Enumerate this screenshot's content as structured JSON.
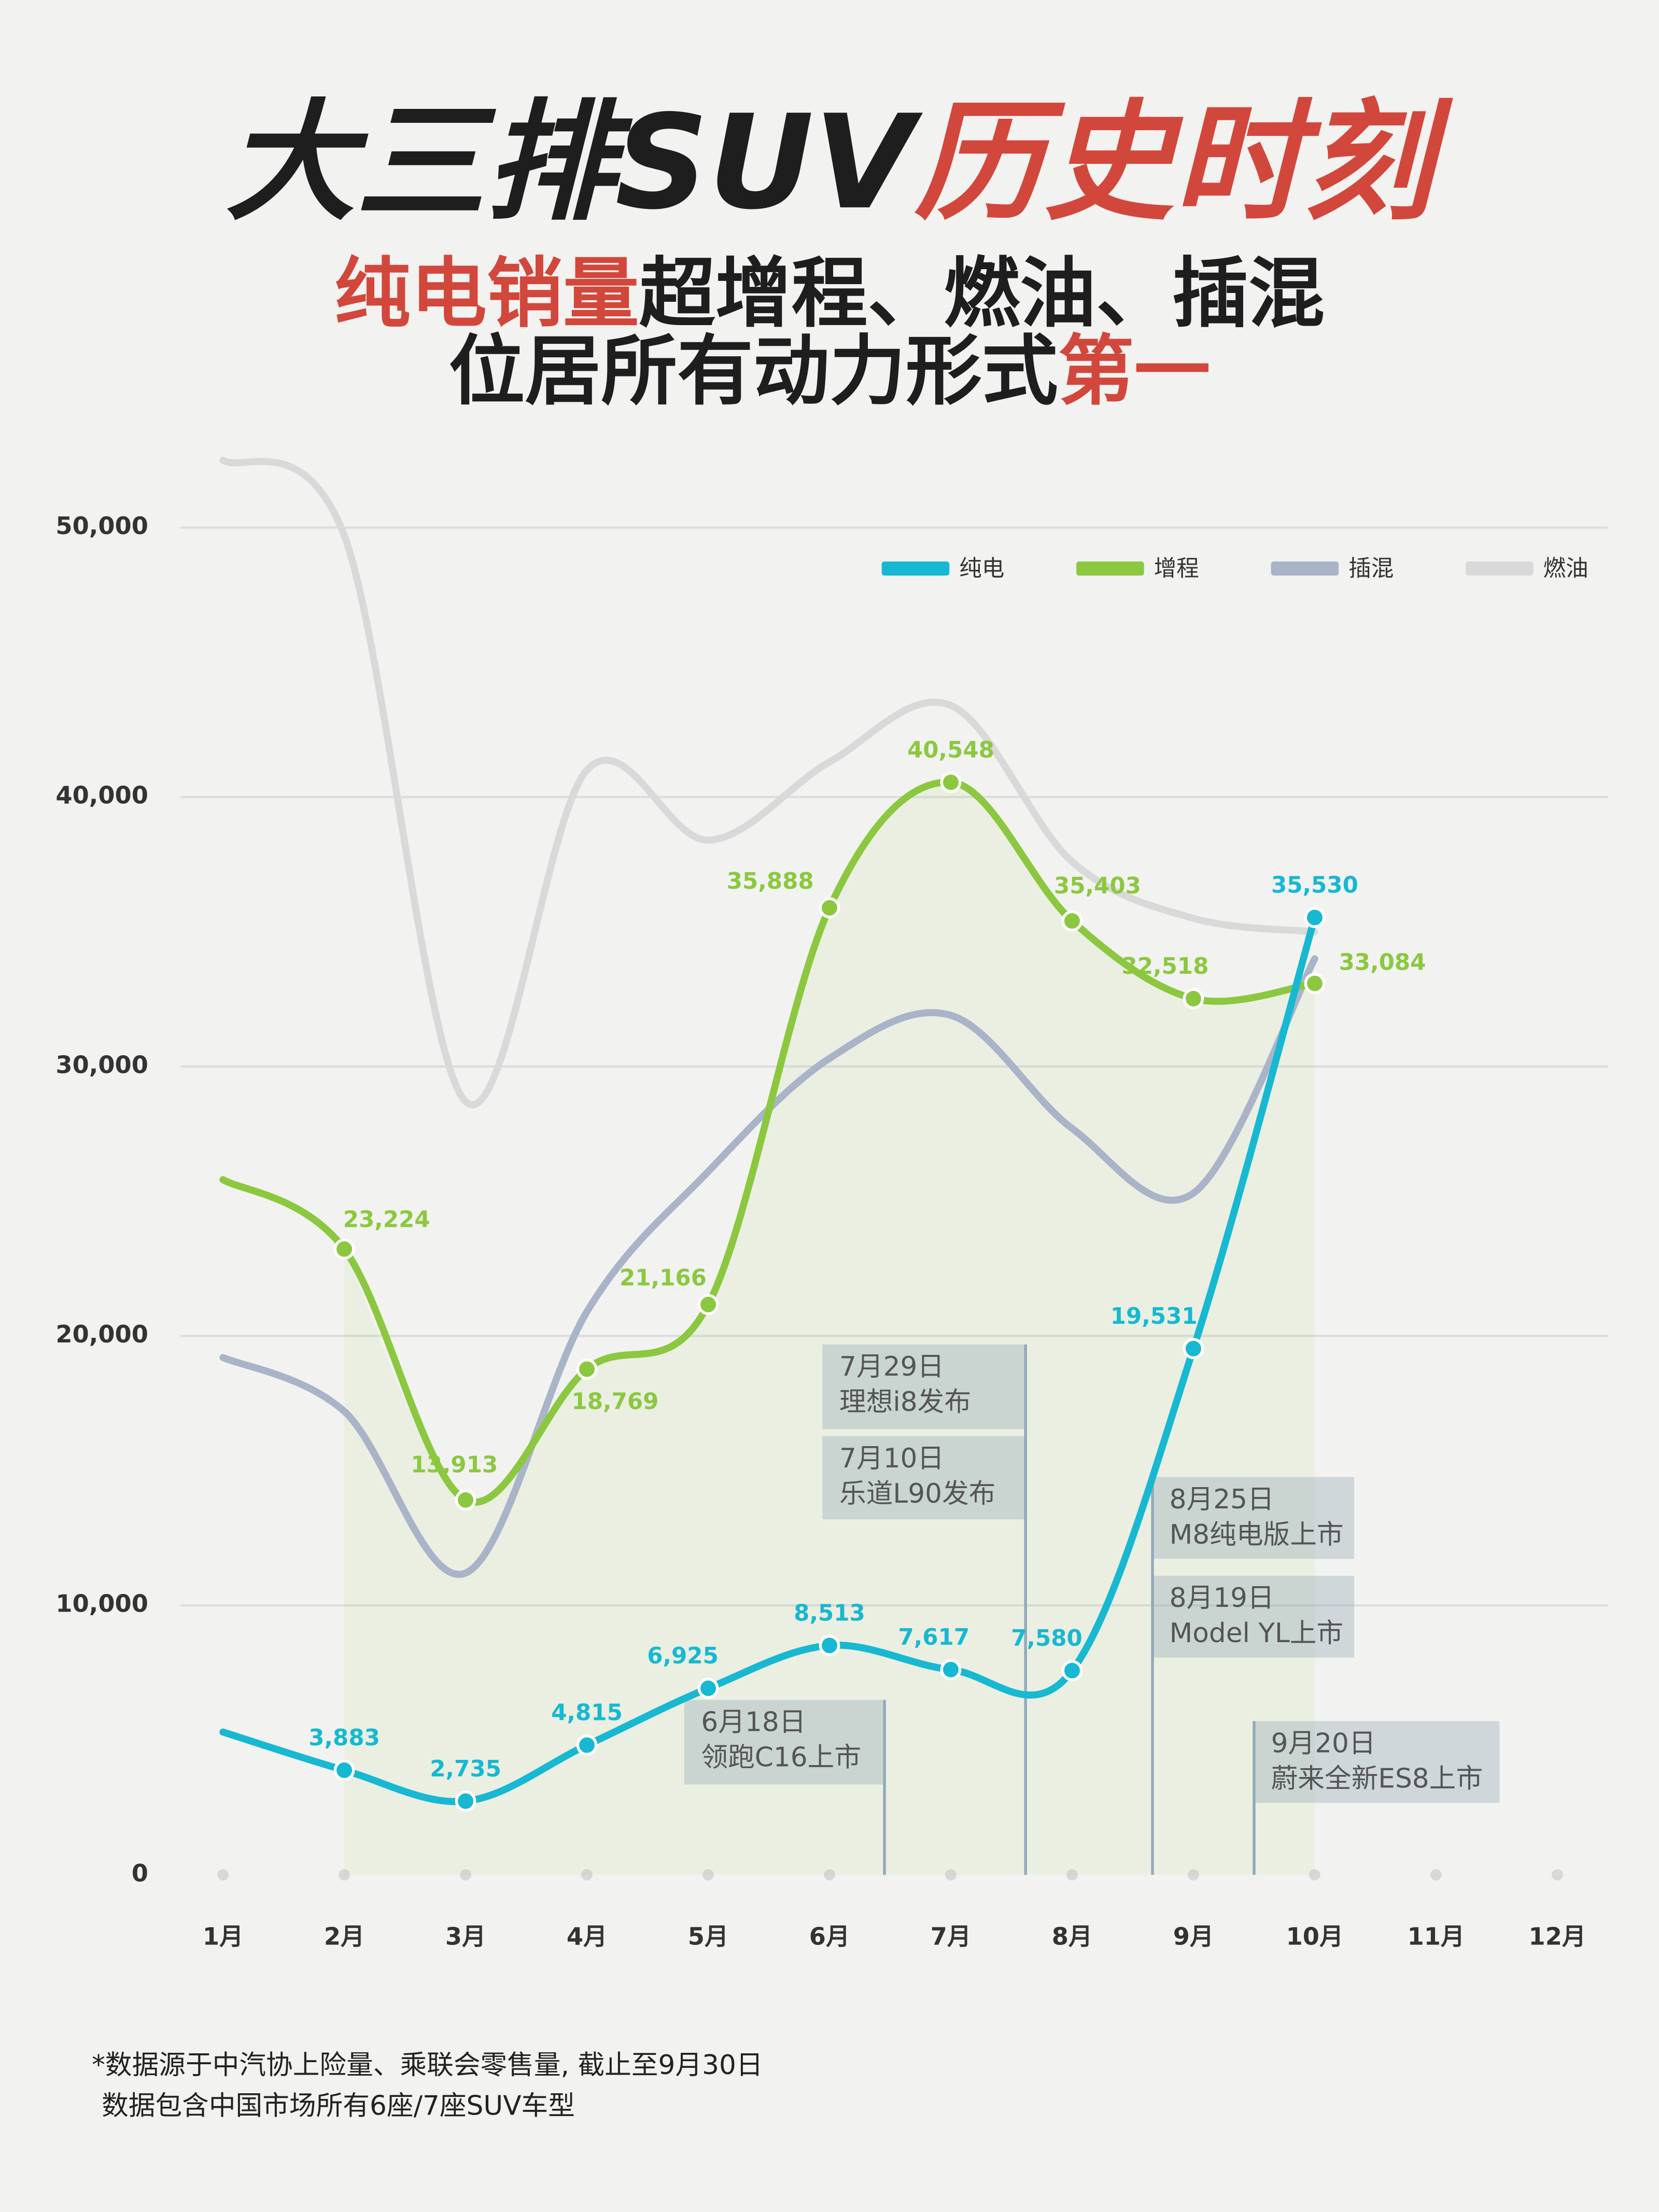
{
  "chart_data": {
    "type": "line",
    "title": [
      "大三排SUV",
      "历史时刻"
    ],
    "subtitle": [
      [
        "纯电销量",
        "超增程、燃油、插混"
      ],
      [
        "位居所有动力形式",
        "第一"
      ]
    ],
    "categories": [
      "1月",
      "2月",
      "3月",
      "4月",
      "5月",
      "6月",
      "7月",
      "8月",
      "9月",
      "10月",
      "11月",
      "12月"
    ],
    "series": [
      {
        "name": "纯电",
        "color": "#17b8d1",
        "values": [
          5300,
          3883,
          2735,
          4815,
          6925,
          8513,
          7617,
          7580,
          19531,
          35530,
          null,
          null
        ],
        "value_labels": [
          null,
          "3,883",
          "2,735",
          "4,815",
          "6,925",
          "8,513",
          "7,617",
          "7,580",
          "19,531",
          "35,530",
          null,
          null
        ]
      },
      {
        "name": "增程",
        "color": "#8bc83f",
        "values": [
          25800,
          23224,
          13913,
          18769,
          21166,
          35888,
          40548,
          35403,
          32518,
          33084,
          null,
          null
        ],
        "value_labels": [
          null,
          "23,224",
          "13,913",
          "18,769",
          "21,166",
          "35,888",
          "40,548",
          "35,403",
          "32,518",
          "33,084",
          null,
          null
        ]
      },
      {
        "name": "插混",
        "color": "#a9b4c8",
        "values": [
          19200,
          17200,
          11200,
          20900,
          26100,
          30300,
          31900,
          27700,
          25300,
          34000,
          null,
          null
        ]
      },
      {
        "name": "燃油",
        "color": "#d9d9d9",
        "values": [
          52500,
          49700,
          28700,
          41000,
          38400,
          41300,
          43400,
          37600,
          35500,
          35000,
          null,
          null
        ]
      }
    ],
    "ylim": [
      0,
      55000
    ],
    "yticks": [
      0,
      {
        "value": 10000,
        "label": "10,000"
      },
      {
        "value": 20000,
        "label": "20,000"
      },
      {
        "value": 30000,
        "label": "30,000"
      },
      {
        "value": 40000,
        "label": "40,000"
      },
      {
        "value": 50000,
        "label": "50,000"
      }
    ],
    "grid": true,
    "legend": "upper right",
    "annotations": [
      [
        "7月29日",
        "理想i8发布"
      ],
      [
        "7月10日",
        "乐道L90发布"
      ],
      [
        "6月18日",
        "领跑C16上市"
      ],
      [
        "8月25日",
        "M8纯电版上市"
      ],
      [
        "8月19日",
        "Model YL上市"
      ],
      [
        "9月20日",
        "蔚来全新ES8上市"
      ]
    ],
    "footnote": [
      "*数据源于中汽协上险量、乘联会零售量, 截止至9月30日",
      "数据包含中国市场所有6座/7座SUV车型"
    ]
  }
}
